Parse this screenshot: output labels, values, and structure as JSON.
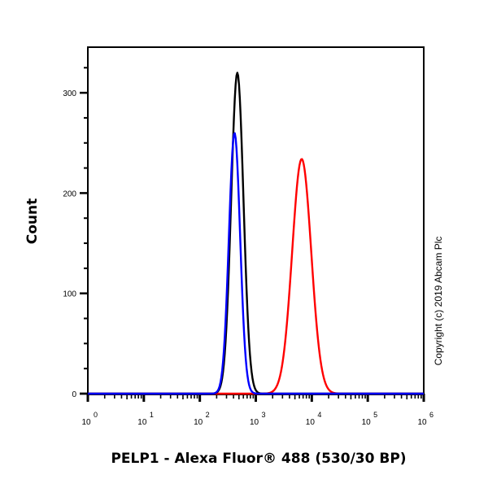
{
  "chart_data": {
    "type": "line",
    "subtype": "flow-cytometry-histogram",
    "title": "",
    "xlabel": "PELP1 - Alexa Fluor® 488 (530/30 BP)",
    "ylabel": "Count",
    "xscale": "log",
    "xlim": [
      1,
      1000000
    ],
    "ylim": [
      0,
      345
    ],
    "x_ticks": [
      {
        "base": "10",
        "exp": "0",
        "value": 1
      },
      {
        "base": "10",
        "exp": "1",
        "value": 10
      },
      {
        "base": "10",
        "exp": "2",
        "value": 100
      },
      {
        "base": "10",
        "exp": "3",
        "value": 1000
      },
      {
        "base": "10",
        "exp": "4",
        "value": 10000
      },
      {
        "base": "10",
        "exp": "5",
        "value": 100000
      },
      {
        "base": "10",
        "exp": "6",
        "value": 1000000
      }
    ],
    "y_ticks": [
      0,
      100,
      200,
      300
    ],
    "y_minor_ticks": [
      25,
      50,
      75,
      125,
      150,
      175,
      225,
      250,
      275,
      325
    ],
    "grid": false,
    "legend": null,
    "series": [
      {
        "name": "black histogram",
        "color": "#000000",
        "peak_x": 470,
        "peak_count": 320,
        "log_center": 2.67,
        "log_sigma": 0.11,
        "points": [
          [
            150,
            4
          ],
          [
            200,
            25
          ],
          [
            250,
            80
          ],
          [
            300,
            160
          ],
          [
            350,
            240
          ],
          [
            400,
            295
          ],
          [
            470,
            320
          ],
          [
            520,
            300
          ],
          [
            600,
            215
          ],
          [
            700,
            110
          ],
          [
            800,
            40
          ],
          [
            900,
            12
          ],
          [
            1100,
            1
          ]
        ]
      },
      {
        "name": "blue histogram",
        "color": "#0000ff",
        "peak_x": 420,
        "peak_count": 260,
        "log_center": 2.62,
        "log_sigma": 0.1,
        "points": [
          [
            150,
            3
          ],
          [
            200,
            20
          ],
          [
            250,
            70
          ],
          [
            300,
            145
          ],
          [
            350,
            215
          ],
          [
            420,
            260
          ],
          [
            470,
            230
          ],
          [
            550,
            140
          ],
          [
            650,
            50
          ],
          [
            750,
            15
          ],
          [
            900,
            2
          ]
        ]
      },
      {
        "name": "red histogram",
        "color": "#ff0000",
        "peak_x": 6600,
        "peak_count": 234,
        "log_center": 3.82,
        "log_sigma": 0.17,
        "points": [
          [
            700,
            1
          ],
          [
            1000,
            8
          ],
          [
            1500,
            25
          ],
          [
            2000,
            55
          ],
          [
            3000,
            130
          ],
          [
            4000,
            190
          ],
          [
            5000,
            222
          ],
          [
            6600,
            234
          ],
          [
            8000,
            215
          ],
          [
            10000,
            150
          ],
          [
            13000,
            70
          ],
          [
            16000,
            25
          ],
          [
            20000,
            6
          ],
          [
            25000,
            1
          ]
        ]
      }
    ],
    "annotations": [
      "Copyright (c) 2019 Abcam Plc"
    ]
  },
  "copyright": "Copyright (c) 2019 Abcam Plc"
}
